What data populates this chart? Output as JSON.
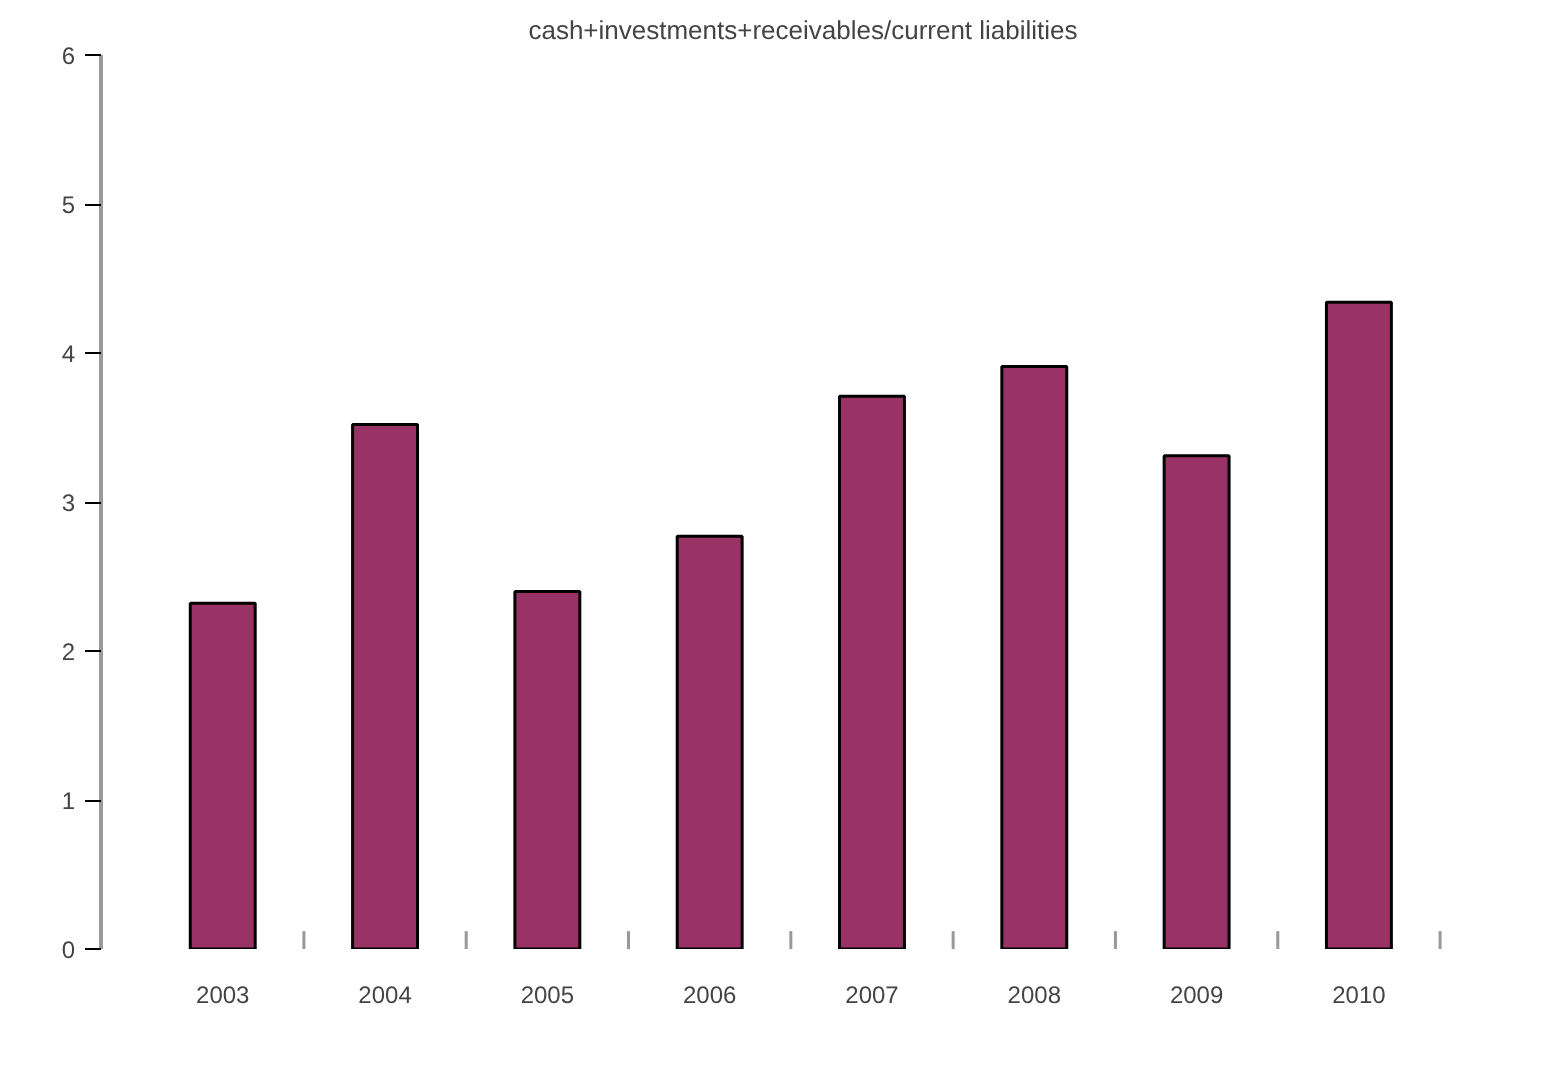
{
  "chart_data": {
    "type": "bar",
    "title": "cash+investments+receivables/current liabilities",
    "categories": [
      "2003",
      "2004",
      "2005",
      "2006",
      "2007",
      "2008",
      "2009",
      "2010"
    ],
    "values": [
      2.32,
      3.52,
      2.4,
      2.77,
      3.71,
      3.91,
      3.31,
      4.34
    ],
    "color": "#993366",
    "ylim": [
      0,
      6
    ],
    "yticks": [
      0,
      1,
      2,
      3,
      4,
      5,
      6
    ],
    "grid": false
  }
}
